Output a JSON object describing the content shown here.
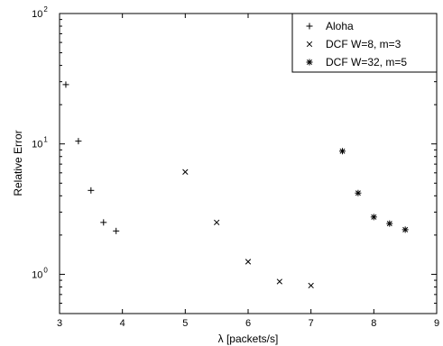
{
  "chart_data": {
    "type": "scatter",
    "title": "",
    "xlabel": "λ [packets/s]",
    "ylabel": "Relative Error",
    "xlim": [
      3,
      9
    ],
    "ylim": [
      0.5,
      100
    ],
    "yscale": "log",
    "grid": false,
    "legend_position": "top-right",
    "x_ticks": [
      "3",
      "4",
      "5",
      "6",
      "7",
      "8",
      "9"
    ],
    "y_ticks": [
      {
        "base": "10",
        "exp": "0"
      },
      {
        "base": "10",
        "exp": "1"
      },
      {
        "base": "10",
        "exp": "2"
      }
    ],
    "series": [
      {
        "name": "Aloha",
        "marker": "plus",
        "x": [
          3.1,
          3.3,
          3.5,
          3.7,
          3.9
        ],
        "y": [
          28.5,
          10.5,
          4.4,
          2.5,
          2.15
        ]
      },
      {
        "name": "DCF W=8, m=3",
        "marker": "cross",
        "x": [
          5.0,
          5.5,
          6.0,
          6.5,
          7.0
        ],
        "y": [
          6.1,
          2.5,
          1.25,
          0.88,
          0.82
        ]
      },
      {
        "name": "DCF W=32, m=5",
        "marker": "star",
        "x": [
          7.5,
          7.75,
          8.0,
          8.25,
          8.5
        ],
        "y": [
          8.8,
          4.2,
          2.75,
          2.45,
          2.2
        ]
      }
    ]
  }
}
